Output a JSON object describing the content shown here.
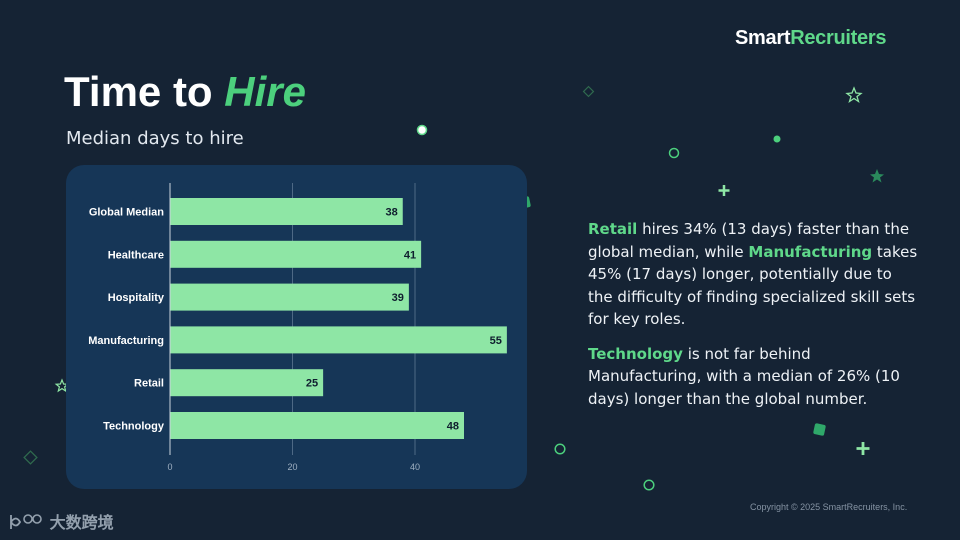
{
  "brand": {
    "part1": "Smart",
    "part2": "Recruiters"
  },
  "title": {
    "main": "Time to ",
    "accent": "Hire"
  },
  "subtitle": "Median days to hire",
  "chart_data": {
    "type": "bar",
    "orientation": "horizontal",
    "categories": [
      "Global Median",
      "Healthcare",
      "Hospitality",
      "Manufacturing",
      "Retail",
      "Technology"
    ],
    "values": [
      38,
      41,
      39,
      55,
      25,
      48
    ],
    "xticks": [
      0,
      20,
      40
    ],
    "xlim": [
      0,
      56
    ],
    "grid": true,
    "bar_color": "#8ee6a5"
  },
  "commentary": {
    "p1": {
      "hl1": "Retail",
      "t1": " hires 34% (13 days) faster than the global median, while ",
      "hl2": "Manufacturing",
      "t2": " takes 45% (17 days) longer, potentially due to the difficulty of finding specialized skill sets for key roles."
    },
    "p2": {
      "hl1": "Technology",
      "t1": " is not far behind Manufacturing, with a median of 26% (10 days) longer than the global number."
    }
  },
  "copyright": "Copyright © 2025 SmartRecruiters, Inc.",
  "watermark": "大数跨境",
  "colors": {
    "background": "#152334",
    "panel": "#163657",
    "accent": "#5fd88a",
    "bar": "#8ee6a5"
  }
}
